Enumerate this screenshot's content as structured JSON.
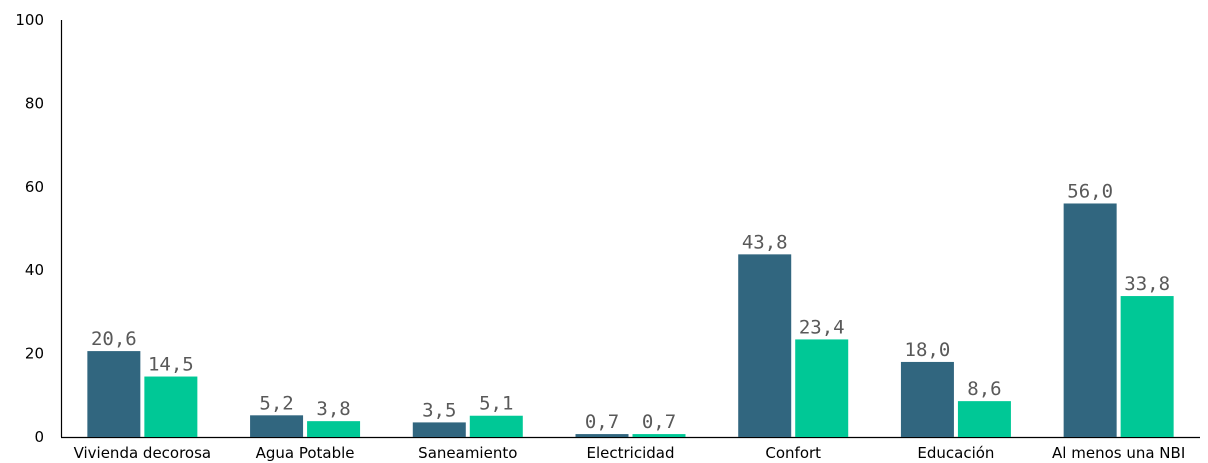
{
  "chart_data": {
    "type": "bar",
    "categories": [
      "Vivienda decorosa",
      "Agua Potable",
      "Saneamiento",
      "Electricidad",
      "Confort",
      "Educación",
      "Al menos una NBI"
    ],
    "series": [
      {
        "values": [
          20.6,
          5.2,
          3.5,
          0.7,
          43.8,
          18.0,
          56.0
        ],
        "labels": [
          "20,6",
          "5,2",
          "3,5",
          "0,7",
          "43,8",
          "18,0",
          "56,0"
        ],
        "color": "#31667f"
      },
      {
        "values": [
          14.5,
          3.8,
          5.1,
          0.7,
          23.4,
          8.6,
          33.8
        ],
        "labels": [
          "14,5",
          "3,8",
          "5,1",
          "0,7",
          "23,4",
          "8,6",
          "33,8"
        ],
        "color": "#00c896"
      }
    ],
    "ylim": [
      0,
      100
    ],
    "yticks": [
      0,
      20,
      40,
      60,
      80,
      100
    ],
    "title": "",
    "xlabel": "",
    "ylabel": "",
    "grid": false,
    "legend": "none"
  }
}
